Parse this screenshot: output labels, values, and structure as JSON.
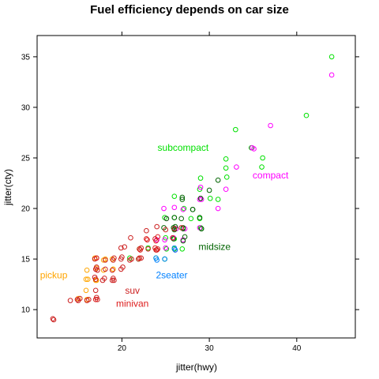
{
  "chart_data": {
    "type": "scatter",
    "title": "Fuel efficiency depends on car size",
    "xlabel": "jitter(hwy)",
    "ylabel": "jitter(cty)",
    "xlim": [
      10.3,
      46.7
    ],
    "ylim": [
      7.2,
      37.1
    ],
    "xticks": [
      {
        "value": 20,
        "label": "20"
      },
      {
        "value": 30,
        "label": "30"
      },
      {
        "value": 40,
        "label": "40"
      }
    ],
    "yticks": [
      {
        "value": 10,
        "label": "10"
      },
      {
        "value": 15,
        "label": "15"
      },
      {
        "value": 20,
        "label": "20"
      },
      {
        "value": 25,
        "label": "25"
      },
      {
        "value": 30,
        "label": "30"
      },
      {
        "value": 35,
        "label": "35"
      }
    ],
    "grid": false,
    "legend": "none (direct labels)",
    "series": [
      {
        "name": "subcompact",
        "color": "#00e000",
        "label": {
          "text": "subcompact",
          "x": 27.0,
          "y": 26.0
        },
        "points": [
          [
            44.0,
            35.0
          ],
          [
            41.1,
            29.2
          ],
          [
            33.0,
            27.8
          ],
          [
            34.8,
            26.0
          ],
          [
            36.1,
            25.0
          ],
          [
            31.9,
            24.9
          ],
          [
            31.9,
            24.0
          ],
          [
            36.0,
            24.1
          ],
          [
            32.0,
            23.1
          ],
          [
            29.0,
            23.0
          ],
          [
            28.9,
            21.9
          ],
          [
            30.1,
            21.0
          ],
          [
            26.0,
            21.2
          ],
          [
            31.0,
            20.9
          ],
          [
            27.1,
            20.0
          ],
          [
            26.0,
            19.1
          ],
          [
            27.9,
            19.0
          ],
          [
            28.9,
            19.0
          ],
          [
            24.9,
            19.1
          ],
          [
            26.2,
            18.0
          ],
          [
            29.0,
            18.1
          ],
          [
            25.0,
            17.1
          ],
          [
            26.0,
            17.0
          ],
          [
            25.1,
            16.0
          ],
          [
            26.9,
            16.0
          ],
          [
            21.9,
            15.0
          ],
          [
            23.9,
            15.1
          ],
          [
            24.9,
            15.0
          ],
          [
            22.0,
            16.0
          ],
          [
            20.9,
            15.1
          ],
          [
            23.0,
            16.1
          ],
          [
            26.0,
            16.0
          ]
        ]
      },
      {
        "name": "compact",
        "color": "#ff00ff",
        "label": {
          "text": "compact",
          "x": 37.0,
          "y": 23.3
        },
        "points": [
          [
            44.0,
            33.2
          ],
          [
            37.0,
            28.2
          ],
          [
            34.9,
            26.0
          ],
          [
            35.1,
            25.9
          ],
          [
            33.1,
            24.1
          ],
          [
            29.0,
            22.1
          ],
          [
            29.0,
            21.0
          ],
          [
            31.9,
            21.9
          ],
          [
            28.9,
            20.9
          ],
          [
            31.0,
            20.0
          ],
          [
            29.1,
            20.9
          ],
          [
            24.8,
            20.0
          ],
          [
            25.1,
            19.0
          ],
          [
            27.0,
            19.9
          ],
          [
            26.2,
            18.0
          ],
          [
            27.2,
            18.0
          ],
          [
            28.9,
            18.1
          ],
          [
            25.9,
            17.1
          ],
          [
            24.9,
            16.9
          ],
          [
            25.0,
            16.1
          ],
          [
            26.1,
            15.9
          ],
          [
            27.0,
            16.9
          ],
          [
            24.0,
            16.9
          ],
          [
            26.0,
            20.1
          ]
        ]
      },
      {
        "name": "midsize",
        "color": "#006400",
        "label": {
          "text": "midsize",
          "x": 30.6,
          "y": 16.2
        },
        "points": [
          [
            29.0,
            21.0
          ],
          [
            30.0,
            21.8
          ],
          [
            26.9,
            20.9
          ],
          [
            31.0,
            22.8
          ],
          [
            28.1,
            19.9
          ],
          [
            26.0,
            18.0
          ],
          [
            25.9,
            18.1
          ],
          [
            27.0,
            18.0
          ],
          [
            29.1,
            18.0
          ],
          [
            24.8,
            18.1
          ],
          [
            26.0,
            17.9
          ],
          [
            27.2,
            17.2
          ],
          [
            26.1,
            18.2
          ],
          [
            27.0,
            16.8
          ],
          [
            25.9,
            17.0
          ],
          [
            29.1,
            18.0
          ],
          [
            26.8,
            19.0
          ],
          [
            26.0,
            19.1
          ],
          [
            25.1,
            19.0
          ],
          [
            26.9,
            21.1
          ],
          [
            28.9,
            19.1
          ],
          [
            28.1,
            19.9
          ],
          [
            27.0,
            18.1
          ]
        ]
      },
      {
        "name": "2seater",
        "color": "#0080ff",
        "label": {
          "text": "2seater",
          "x": 25.7,
          "y": 13.4
        },
        "points": [
          [
            26.0,
            16.1
          ],
          [
            24.9,
            15.0
          ],
          [
            26.1,
            15.9
          ],
          [
            23.9,
            15.1
          ],
          [
            24.0,
            14.9
          ]
        ]
      },
      {
        "name": "pickup",
        "color": "#ffa500",
        "label": {
          "text": "pickup",
          "x": 12.2,
          "y": 13.4
        },
        "points": [
          [
            16.0,
            11.0
          ],
          [
            15.9,
            11.9
          ],
          [
            17.0,
            12.9
          ],
          [
            15.9,
            13.0
          ],
          [
            17.1,
            14.1
          ],
          [
            19.0,
            14.0
          ],
          [
            17.9,
            14.9
          ],
          [
            16.0,
            13.9
          ],
          [
            18.9,
            15.0
          ],
          [
            18.1,
            15.0
          ],
          [
            17.9,
            13.9
          ],
          [
            16.9,
            15.1
          ],
          [
            19.0,
            14.0
          ],
          [
            17.1,
            12.9
          ],
          [
            15.0,
            11.1
          ],
          [
            16.1,
            13.0
          ]
        ]
      },
      {
        "name": "suv",
        "color": "#cc2020",
        "label": {
          "text": "suv",
          "x": 21.2,
          "y": 11.9
        },
        "points": [
          [
            12.1,
            9.1
          ],
          [
            12.2,
            9.0
          ],
          [
            14.9,
            11.0
          ],
          [
            15.0,
            10.9
          ],
          [
            14.1,
            10.9
          ],
          [
            15.2,
            11.1
          ],
          [
            16.2,
            11.0
          ],
          [
            17.1,
            11.2
          ],
          [
            17.0,
            11.9
          ],
          [
            17.0,
            13.0
          ],
          [
            16.9,
            13.2
          ],
          [
            17.0,
            14.0
          ],
          [
            17.2,
            13.9
          ],
          [
            17.1,
            14.2
          ],
          [
            18.1,
            14.0
          ],
          [
            18.0,
            13.1
          ],
          [
            19.0,
            13.1
          ],
          [
            18.9,
            12.9
          ],
          [
            17.8,
            12.9
          ],
          [
            18.9,
            13.9
          ],
          [
            19.9,
            14.0
          ],
          [
            19.0,
            14.9
          ],
          [
            18.1,
            14.9
          ],
          [
            17.1,
            15.1
          ],
          [
            16.9,
            15.0
          ],
          [
            19.1,
            15.1
          ],
          [
            19.9,
            15.0
          ],
          [
            19.9,
            16.1
          ],
          [
            20.0,
            15.2
          ],
          [
            20.1,
            14.2
          ],
          [
            20.9,
            14.9
          ],
          [
            21.1,
            15.0
          ],
          [
            21.0,
            17.1
          ],
          [
            20.3,
            16.2
          ],
          [
            22.2,
            16.1
          ],
          [
            22.8,
            17.8
          ],
          [
            23.0,
            16.0
          ],
          [
            23.9,
            15.9
          ],
          [
            24.0,
            18.2
          ],
          [
            23.8,
            17.0
          ],
          [
            24.1,
            16.0
          ],
          [
            25.0,
            17.9
          ],
          [
            25.8,
            17.1
          ],
          [
            26.0,
            18.0
          ],
          [
            26.8,
            18.1
          ],
          [
            21.9,
            15.0
          ],
          [
            22.2,
            15.1
          ],
          [
            19.1,
            12.9
          ],
          [
            17.2,
            11.0
          ],
          [
            16.0,
            10.9
          ]
        ]
      },
      {
        "name": "minivan",
        "color": "#dd1b1b",
        "label": {
          "text": "minivan",
          "x": 21.2,
          "y": 10.6
        },
        "points": [
          [
            23.9,
            16.8
          ],
          [
            22.1,
            15.9
          ],
          [
            24.0,
            15.9
          ],
          [
            22.9,
            16.9
          ],
          [
            23.8,
            16.1
          ],
          [
            22.0,
            15.1
          ],
          [
            22.8,
            17.0
          ],
          [
            24.1,
            17.2
          ],
          [
            22.0,
            16.0
          ],
          [
            17.0,
            11.0
          ],
          [
            17.1,
            15.1
          ]
        ]
      }
    ]
  }
}
